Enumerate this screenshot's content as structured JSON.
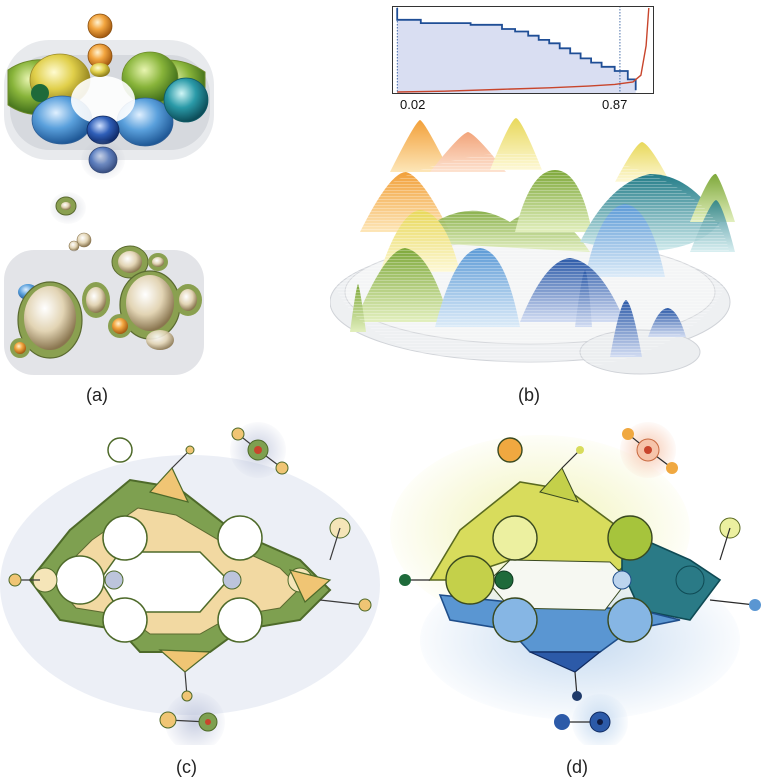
{
  "captions": {
    "a": "(a)",
    "b": "(b)",
    "c": "(c)",
    "d": "(d)"
  },
  "chart_data": {
    "type": "line",
    "x_tick_labels": [
      "0.02",
      "0.87"
    ],
    "xlim": [
      0,
      1
    ],
    "ylim": [
      0,
      1
    ],
    "series": [
      {
        "color": "#1f4e96",
        "x": [
          0.02,
          0.02,
          0.11,
          0.11,
          0.3,
          0.3,
          0.42,
          0.42,
          0.47,
          0.47,
          0.52,
          0.52,
          0.56,
          0.56,
          0.6,
          0.6,
          0.64,
          0.64,
          0.68,
          0.68,
          0.72,
          0.72,
          0.76,
          0.76,
          0.8,
          0.8,
          0.85,
          0.85,
          0.9,
          0.9,
          0.93,
          0.93
        ],
        "y": [
          1.0,
          0.86,
          0.86,
          0.82,
          0.82,
          0.8,
          0.8,
          0.75,
          0.75,
          0.72,
          0.72,
          0.67,
          0.67,
          0.62,
          0.62,
          0.58,
          0.58,
          0.52,
          0.52,
          0.46,
          0.46,
          0.4,
          0.4,
          0.35,
          0.35,
          0.3,
          0.3,
          0.25,
          0.25,
          0.15,
          0.15,
          0.02
        ]
      },
      {
        "color": "#c8452c",
        "x": [
          0.02,
          0.2,
          0.4,
          0.6,
          0.75,
          0.85,
          0.92,
          0.95,
          0.97,
          0.98
        ],
        "y": [
          0.0,
          0.01,
          0.03,
          0.05,
          0.07,
          0.09,
          0.12,
          0.2,
          0.55,
          1.0
        ]
      }
    ],
    "colors": {
      "area_fill": "#d9def2",
      "frame": "#333333"
    }
  }
}
